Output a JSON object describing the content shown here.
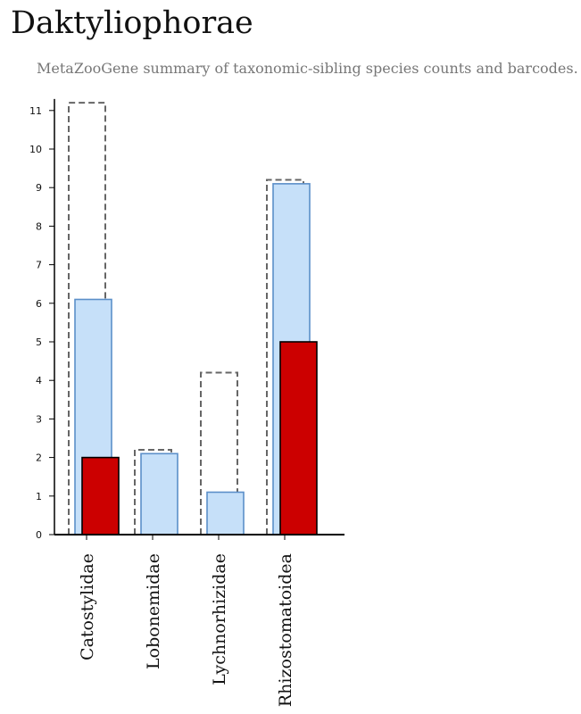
{
  "header": {
    "title": "Daktyliophorae",
    "subtitle": "MetaZooGene summary of taxonomic-sibling species counts and barcodes."
  },
  "colors": {
    "outline_bar": "#666666",
    "blue_fill": "#c6e0f9",
    "blue_stroke": "#5b8fc9",
    "red_fill": "#cc0000",
    "red_stroke": "#000000",
    "axis": "#000000"
  },
  "chart_data": {
    "type": "bar",
    "categories": [
      "Catostylidae",
      "Lobonemidae",
      "Lychnorhizidae",
      "Rhizostomatoidea"
    ],
    "series": [
      {
        "style": "dashed-outline",
        "values": [
          11.2,
          2.2,
          4.2,
          9.2
        ]
      },
      {
        "style": "blue",
        "values": [
          6.1,
          2.1,
          1.1,
          9.1
        ]
      },
      {
        "style": "red",
        "values": [
          2,
          0,
          0,
          5
        ]
      }
    ],
    "yticks": [
      0,
      1,
      2,
      3,
      4,
      5,
      6,
      7,
      8,
      9,
      10,
      11
    ],
    "ylim": [
      0,
      11.3
    ],
    "grid": false
  }
}
